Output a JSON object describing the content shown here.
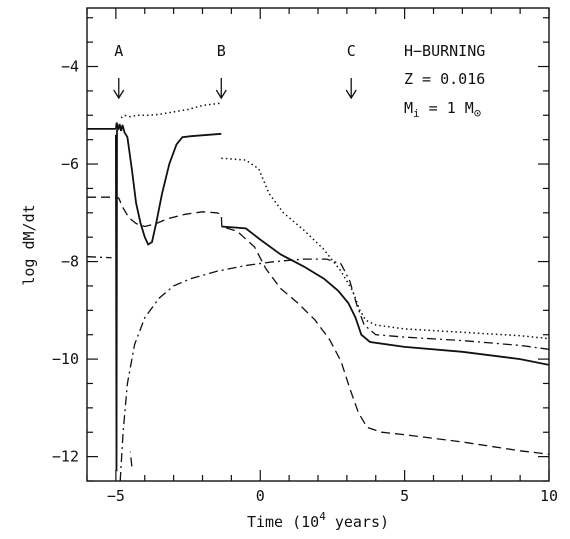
{
  "chart_data": {
    "type": "line",
    "title": "",
    "xlabel_main": "Time (10",
    "xlabel_exp": "4",
    "xlabel_tail": " years)",
    "ylabel": "log dM/dt",
    "xlim": [
      -6.0,
      10.0
    ],
    "ylim": [
      -12.5,
      -2.8
    ],
    "x_ticks_major": [
      -5,
      0,
      5,
      10
    ],
    "x_tick_labels": [
      "−5",
      "0",
      "5",
      "10"
    ],
    "y_ticks_major": [
      -12,
      -10,
      -8,
      -6,
      -4
    ],
    "y_tick_labels": [
      "−12",
      "−10",
      "−8",
      "−6",
      "−4"
    ],
    "grid": false,
    "legend": "none",
    "annotations": {
      "line1": "H−BURNING",
      "line2": "Z = 0.016",
      "line3_main": "M",
      "line3_sub": "i",
      "line3_tail": " = 1 M",
      "line3_sun": "⊙"
    },
    "markers": [
      {
        "label": "A",
        "x": -4.9
      },
      {
        "label": "B",
        "x": -1.35
      },
      {
        "label": "C",
        "x": 3.15
      }
    ],
    "series": [
      {
        "style": "solid",
        "segments": [
          [
            [
              -6.0,
              -5.28
            ],
            [
              -5.0,
              -5.28
            ],
            [
              -4.97,
              -5.15
            ],
            [
              -4.92,
              -5.3
            ],
            [
              -4.87,
              -5.18
            ],
            [
              -4.82,
              -5.32
            ],
            [
              -4.77,
              -5.2
            ],
            [
              -4.7,
              -5.35
            ],
            [
              -4.6,
              -5.45
            ],
            [
              -4.45,
              -6.1
            ],
            [
              -4.3,
              -6.8
            ],
            [
              -4.15,
              -7.2
            ],
            [
              -4.0,
              -7.5
            ],
            [
              -3.88,
              -7.65
            ],
            [
              -3.75,
              -7.6
            ],
            [
              -3.6,
              -7.2
            ],
            [
              -3.4,
              -6.6
            ],
            [
              -3.15,
              -6.0
            ],
            [
              -2.9,
              -5.6
            ],
            [
              -2.7,
              -5.45
            ],
            [
              -2.4,
              -5.43
            ],
            [
              -1.35,
              -5.38
            ]
          ],
          [
            [
              -5.0,
              -5.4
            ],
            [
              -4.98,
              -12.3
            ],
            [
              -4.96,
              -5.3
            ]
          ],
          [
            [
              -1.35,
              -7.28
            ],
            [
              -0.5,
              -7.32
            ],
            [
              0.0,
              -7.55
            ],
            [
              0.7,
              -7.85
            ],
            [
              1.5,
              -8.1
            ],
            [
              2.2,
              -8.35
            ],
            [
              2.7,
              -8.6
            ],
            [
              3.05,
              -8.85
            ],
            [
              3.3,
              -9.15
            ],
            [
              3.5,
              -9.5
            ],
            [
              3.8,
              -9.65
            ],
            [
              5.0,
              -9.75
            ],
            [
              7.0,
              -9.85
            ],
            [
              9.0,
              -10.0
            ],
            [
              10.0,
              -10.12
            ]
          ]
        ]
      },
      {
        "style": "dotted",
        "segments": [
          [
            [
              -4.82,
              -5.05
            ],
            [
              -4.7,
              -5.0
            ],
            [
              -4.5,
              -5.03
            ],
            [
              -4.25,
              -5.0
            ],
            [
              -3.9,
              -5.0
            ],
            [
              -3.5,
              -4.98
            ],
            [
              -3.0,
              -4.93
            ],
            [
              -2.5,
              -4.88
            ],
            [
              -2.0,
              -4.8
            ],
            [
              -1.35,
              -4.75
            ]
          ],
          [
            [
              -1.35,
              -5.88
            ],
            [
              -0.5,
              -5.92
            ],
            [
              -0.05,
              -6.1
            ],
            [
              0.3,
              -6.6
            ],
            [
              0.8,
              -7.0
            ],
            [
              1.5,
              -7.35
            ],
            [
              2.2,
              -7.75
            ],
            [
              2.8,
              -8.2
            ],
            [
              3.2,
              -8.6
            ],
            [
              3.45,
              -9.0
            ],
            [
              3.65,
              -9.2
            ],
            [
              4.0,
              -9.3
            ],
            [
              5.0,
              -9.38
            ],
            [
              7.0,
              -9.45
            ],
            [
              9.0,
              -9.52
            ],
            [
              10.0,
              -9.58
            ]
          ]
        ]
      },
      {
        "style": "dashed",
        "segments": [
          [
            [
              -6.0,
              -6.68
            ],
            [
              -5.0,
              -6.68
            ],
            [
              -4.9,
              -6.7
            ],
            [
              -4.75,
              -6.9
            ],
            [
              -4.55,
              -7.1
            ],
            [
              -4.3,
              -7.22
            ],
            [
              -4.0,
              -7.28
            ],
            [
              -3.6,
              -7.22
            ],
            [
              -3.2,
              -7.12
            ],
            [
              -2.6,
              -7.03
            ],
            [
              -2.0,
              -6.98
            ],
            [
              -1.5,
              -7.0
            ],
            [
              -1.35,
              -7.03
            ],
            [
              -1.33,
              -7.28
            ],
            [
              -0.8,
              -7.38
            ],
            [
              -0.2,
              -7.7
            ],
            [
              0.2,
              -8.15
            ],
            [
              0.7,
              -8.55
            ],
            [
              1.3,
              -8.85
            ],
            [
              1.9,
              -9.2
            ],
            [
              2.4,
              -9.6
            ],
            [
              2.8,
              -10.05
            ],
            [
              3.1,
              -10.6
            ],
            [
              3.4,
              -11.1
            ],
            [
              3.7,
              -11.4
            ],
            [
              4.2,
              -11.5
            ],
            [
              5.0,
              -11.55
            ],
            [
              7.0,
              -11.7
            ],
            [
              9.0,
              -11.88
            ],
            [
              10.0,
              -11.95
            ]
          ],
          [
            [
              -4.45,
              -12.2
            ],
            [
              -4.5,
              -11.9
            ]
          ]
        ]
      },
      {
        "style": "dashdot",
        "segments": [
          [
            [
              -6.0,
              -7.9
            ],
            [
              -5.15,
              -7.92
            ]
          ],
          [
            [
              -4.85,
              -12.5
            ],
            [
              -4.75,
              -11.5
            ],
            [
              -4.6,
              -10.5
            ],
            [
              -4.35,
              -9.7
            ],
            [
              -4.0,
              -9.15
            ],
            [
              -3.5,
              -8.75
            ],
            [
              -3.0,
              -8.5
            ],
            [
              -2.4,
              -8.35
            ],
            [
              -1.5,
              -8.2
            ],
            [
              -0.5,
              -8.08
            ],
            [
              0.5,
              -8.0
            ],
            [
              1.5,
              -7.95
            ],
            [
              2.3,
              -7.95
            ],
            [
              2.8,
              -8.05
            ],
            [
              3.1,
              -8.4
            ],
            [
              3.35,
              -8.9
            ],
            [
              3.6,
              -9.3
            ],
            [
              4.0,
              -9.5
            ],
            [
              5.0,
              -9.55
            ],
            [
              7.0,
              -9.62
            ],
            [
              9.0,
              -9.72
            ],
            [
              10.0,
              -9.8
            ]
          ]
        ]
      }
    ]
  }
}
